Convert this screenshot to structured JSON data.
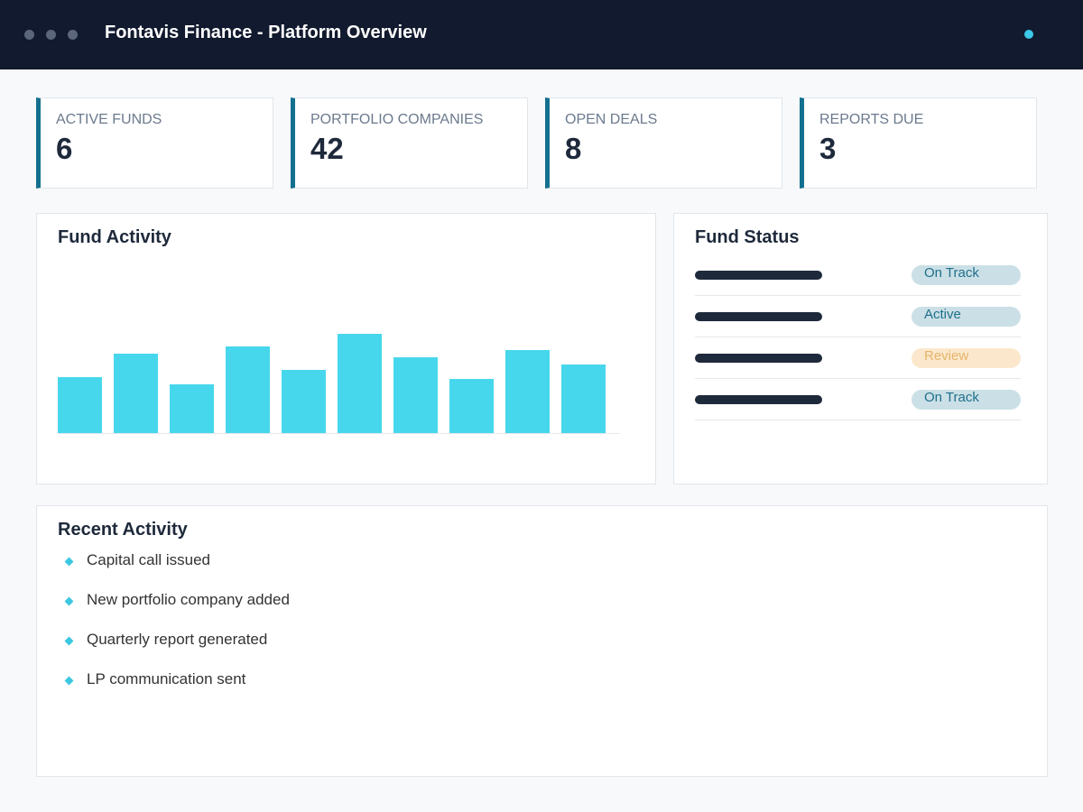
{
  "header": {
    "title": "Fontavis Finance - Platform Overview"
  },
  "kpis": [
    {
      "label": "ACTIVE FUNDS",
      "value": 6
    },
    {
      "label": "PORTFOLIO COMPANIES",
      "value": 42
    },
    {
      "label": "OPEN DEALS",
      "value": 8
    },
    {
      "label": "REPORTS DUE",
      "value": 3
    }
  ],
  "chart_data": {
    "type": "bar",
    "title": "Fund Activity",
    "color": "#47d7ec",
    "values": [
      62,
      88,
      54,
      96,
      70,
      110,
      84,
      60,
      92,
      76
    ]
  },
  "fund_status": {
    "title": "Fund Status",
    "rows": [
      {
        "status": "On Track",
        "tone": "ok"
      },
      {
        "status": "Active",
        "tone": "ok"
      },
      {
        "status": "Review",
        "tone": "warn"
      },
      {
        "status": "On Track",
        "tone": "ok"
      }
    ]
  },
  "recent_activity": {
    "title": "Recent Activity",
    "items": [
      "Capital call issued",
      "New portfolio company added",
      "Quarterly report generated",
      "LP communication sent"
    ]
  }
}
